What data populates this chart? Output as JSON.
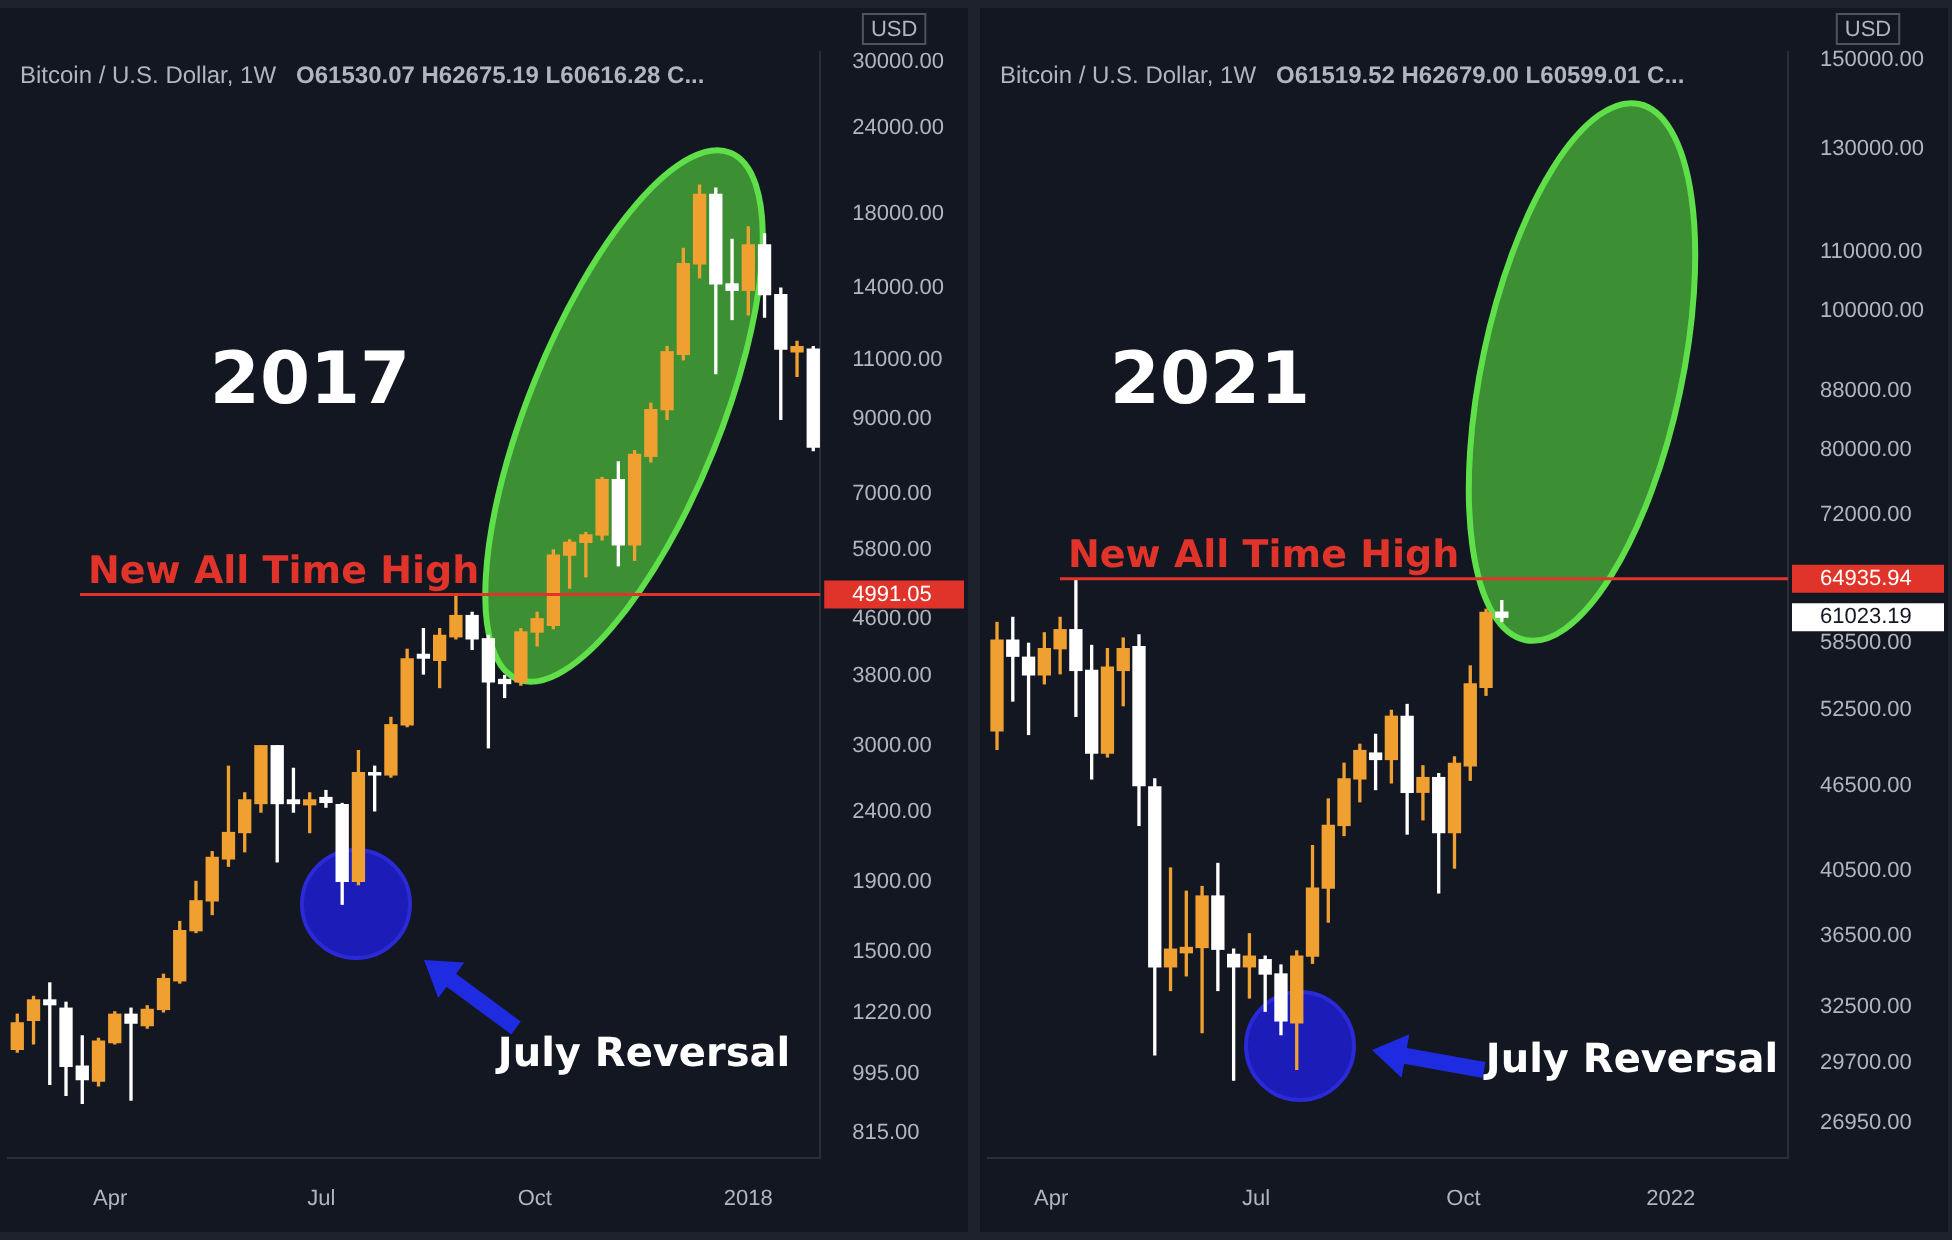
{
  "chart_data": [
    {
      "type": "candlestick",
      "title": "Bitcoin / U.S. Dollar, 1W",
      "subtitle": "O61530.07 H62675.19 L60616.28 C...",
      "ylabel": "USD",
      "log": true,
      "x": [
        "2017-02-20",
        "2017-02-27",
        "2017-03-06",
        "2017-03-13",
        "2017-03-20",
        "2017-03-27",
        "2017-04-03",
        "2017-04-10",
        "2017-04-17",
        "2017-04-24",
        "2017-05-01",
        "2017-05-08",
        "2017-05-15",
        "2017-05-22",
        "2017-05-29",
        "2017-06-05",
        "2017-06-12",
        "2017-06-19",
        "2017-06-26",
        "2017-07-03",
        "2017-07-10",
        "2017-07-17",
        "2017-07-24",
        "2017-07-31",
        "2017-08-07",
        "2017-08-14",
        "2017-08-21",
        "2017-08-28",
        "2017-09-04",
        "2017-09-11",
        "2017-09-18",
        "2017-09-25",
        "2017-10-02",
        "2017-10-09",
        "2017-10-16",
        "2017-10-23",
        "2017-10-30",
        "2017-11-06",
        "2017-11-13",
        "2017-11-20",
        "2017-11-27",
        "2017-12-04",
        "2017-12-11",
        "2017-12-18",
        "2017-12-25",
        "2018-01-01",
        "2018-01-08",
        "2018-01-15",
        "2018-01-22",
        "2018-01-29"
      ],
      "ohlc": [
        [
          1080,
          1215,
          1070,
          1180
        ],
        [
          1190,
          1290,
          1100,
          1275
        ],
        [
          1275,
          1350,
          960,
          1255
        ],
        [
          1240,
          1265,
          925,
          1020
        ],
        [
          1020,
          1130,
          900,
          975
        ],
        [
          970,
          1120,
          955,
          1110
        ],
        [
          1105,
          1225,
          1100,
          1215
        ],
        [
          1215,
          1240,
          910,
          1180
        ],
        [
          1170,
          1250,
          1160,
          1235
        ],
        [
          1235,
          1390,
          1225,
          1370
        ],
        [
          1360,
          1660,
          1350,
          1610
        ],
        [
          1610,
          1900,
          1600,
          1780
        ],
        [
          1780,
          2100,
          1700,
          2060
        ],
        [
          2050,
          2800,
          2000,
          2240
        ],
        [
          2240,
          2560,
          2100,
          2500
        ],
        [
          2470,
          3000,
          2400,
          3000
        ],
        [
          3000,
          3000,
          2030,
          2470
        ],
        [
          2500,
          2780,
          2400,
          2470
        ],
        [
          2460,
          2560,
          2240,
          2500
        ],
        [
          2520,
          2580,
          2440,
          2480
        ],
        [
          2460,
          2470,
          1760,
          1900
        ],
        [
          1900,
          2950,
          1880,
          2740
        ],
        [
          2740,
          2800,
          2410,
          2720
        ],
        [
          2720,
          3300,
          2700,
          3220
        ],
        [
          3220,
          4150,
          3200,
          4020
        ],
        [
          4080,
          4450,
          3820,
          4030
        ],
        [
          4000,
          4450,
          3650,
          4350
        ],
        [
          4330,
          5000,
          4300,
          4650
        ],
        [
          4650,
          4700,
          4150,
          4300
        ],
        [
          4300,
          4350,
          2980,
          3720
        ],
        [
          3750,
          3800,
          3530,
          3700
        ],
        [
          3720,
          4450,
          3680,
          4400
        ],
        [
          4400,
          4700,
          4200,
          4600
        ],
        [
          4500,
          5800,
          4450,
          5700
        ],
        [
          5700,
          6000,
          5100,
          5950
        ],
        [
          5950,
          6150,
          5300,
          6100
        ],
        [
          6100,
          7400,
          6000,
          7350
        ],
        [
          7350,
          7800,
          5500,
          5900
        ],
        [
          5900,
          8100,
          5600,
          8000
        ],
        [
          7950,
          9500,
          7800,
          9300
        ],
        [
          9300,
          11500,
          9000,
          11300
        ],
        [
          11200,
          16000,
          11000,
          15200
        ],
        [
          15200,
          19800,
          14500,
          19200
        ],
        [
          19200,
          19600,
          10500,
          14200
        ],
        [
          14200,
          16500,
          12600,
          13900
        ],
        [
          13900,
          17200,
          12800,
          16200
        ],
        [
          16200,
          16800,
          12700,
          13700
        ],
        [
          13700,
          14000,
          9000,
          11400
        ],
        [
          11300,
          11700,
          10400,
          11500
        ],
        [
          11400,
          11500,
          8100,
          8200
        ]
      ],
      "xlim": [
        "2017-02-16",
        "2018-02-01"
      ],
      "xticks": [
        {
          "value": "2017-04-01",
          "label": "Apr"
        },
        {
          "value": "2017-07-01",
          "label": "Jul"
        },
        {
          "value": "2017-10-01",
          "label": "Oct"
        },
        {
          "value": "2018-01-01",
          "label": "2018"
        }
      ],
      "ylim": [
        750,
        31000
      ],
      "yticks": [
        {
          "value": 815,
          "label": "815.00"
        },
        {
          "value": 995,
          "label": "995.00"
        },
        {
          "value": 1220,
          "label": "1220.00"
        },
        {
          "value": 1500,
          "label": "1500.00"
        },
        {
          "value": 1900,
          "label": "1900.00"
        },
        {
          "value": 2400,
          "label": "2400.00"
        },
        {
          "value": 3000,
          "label": "3000.00"
        },
        {
          "value": 3800,
          "label": "3800.00"
        },
        {
          "value": 4600,
          "label": "4600.00"
        },
        4991.05,
        {
          "value": 5800,
          "label": "5800.00"
        },
        {
          "value": 7000,
          "label": "7000.00"
        },
        {
          "value": 9000,
          "label": "9000.00"
        },
        {
          "value": 11000,
          "label": "11000.00"
        },
        {
          "value": 14000,
          "label": "14000.00"
        },
        {
          "value": 18000,
          "label": "18000.00"
        },
        {
          "value": 24000,
          "label": "24000.00"
        },
        {
          "value": 30000,
          "label": "30000.00"
        }
      ],
      "ref_lines": [
        {
          "axis": "y",
          "value": 4991.05,
          "label": "New All Time High",
          "color": "#e0342a"
        }
      ],
      "annotations": [
        "2017",
        "July Reversal"
      ]
    },
    {
      "type": "candlestick",
      "title": "Bitcoin / U.S. Dollar, 1W",
      "subtitle": "O61519.52 H62679.00 L60599.01 C...",
      "ylabel": "USD",
      "log": true,
      "x": [
        "2021-03-08",
        "2021-03-15",
        "2021-03-22",
        "2021-03-29",
        "2021-04-05",
        "2021-04-12",
        "2021-04-19",
        "2021-04-26",
        "2021-05-03",
        "2021-05-10",
        "2021-05-17",
        "2021-05-24",
        "2021-05-31",
        "2021-06-07",
        "2021-06-14",
        "2021-06-21",
        "2021-06-28",
        "2021-07-05",
        "2021-07-12",
        "2021-07-19",
        "2021-07-26",
        "2021-08-02",
        "2021-08-09",
        "2021-08-16",
        "2021-08-23",
        "2021-08-30",
        "2021-09-06",
        "2021-09-13",
        "2021-09-20",
        "2021-09-27",
        "2021-10-04",
        "2021-10-11",
        "2021-10-18"
      ],
      "ohlc": [
        [
          50800,
          60500,
          49300,
          58800
        ],
        [
          58800,
          61000,
          53300,
          57300
        ],
        [
          57200,
          58500,
          50500,
          55600
        ],
        [
          55600,
          59500,
          54800,
          58000
        ],
        [
          58000,
          61000,
          55700,
          59800
        ],
        [
          59800,
          64900,
          52000,
          56000
        ],
        [
          56000,
          58300,
          47000,
          49000
        ],
        [
          49000,
          58000,
          48700,
          56300
        ],
        [
          56000,
          59000,
          52900,
          58000
        ],
        [
          58200,
          59300,
          43600,
          46500
        ],
        [
          46400,
          47000,
          30100,
          34700
        ],
        [
          34700,
          40700,
          33400,
          35700
        ],
        [
          35500,
          39200,
          34200,
          35800
        ],
        [
          35800,
          39500,
          31200,
          38900
        ],
        [
          38900,
          41000,
          33400,
          35700
        ],
        [
          35400,
          35700,
          28900,
          34700
        ],
        [
          34700,
          36600,
          33000,
          35300
        ],
        [
          35100,
          35300,
          32300,
          34300
        ],
        [
          34300,
          34800,
          31100,
          31800
        ],
        [
          31700,
          35600,
          29400,
          35300
        ],
        [
          35300,
          42200,
          34900,
          39400
        ],
        [
          39400,
          45500,
          37300,
          43600
        ],
        [
          43600,
          48200,
          42900,
          47000
        ],
        [
          47000,
          49700,
          45300,
          49200
        ],
        [
          49000,
          50500,
          46200,
          48500
        ],
        [
          48500,
          52500,
          46700,
          52000
        ],
        [
          52000,
          53000,
          43000,
          46000
        ],
        [
          46000,
          48000,
          44000,
          47100
        ],
        [
          47100,
          47400,
          39100,
          43100
        ],
        [
          43100,
          48700,
          40700,
          48200
        ],
        [
          48000,
          56400,
          46900,
          54800
        ],
        [
          54500,
          61800,
          53800,
          61500
        ],
        [
          61519.52,
          62679.0,
          60599.01,
          61023.19
        ]
      ],
      "xlim": [
        "2021-03-04",
        "2022-02-22"
      ],
      "xticks": [
        {
          "value": "2021-04-01",
          "label": "Apr"
        },
        {
          "value": "2021-07-01",
          "label": "Jul"
        },
        {
          "value": "2021-10-01",
          "label": "Oct"
        },
        {
          "value": "2022-01-01",
          "label": "2022"
        }
      ],
      "ylim": [
        25500,
        152000
      ],
      "yticks": [
        {
          "value": 26950,
          "label": "26950.00"
        },
        {
          "value": 29700,
          "label": "29700.00"
        },
        {
          "value": 32500,
          "label": "32500.00"
        },
        {
          "value": 36500,
          "label": "36500.00"
        },
        {
          "value": 40500,
          "label": "40500.00"
        },
        {
          "value": 46500,
          "label": "46500.00"
        },
        {
          "value": 52500,
          "label": "52500.00"
        },
        {
          "value": 58500,
          "label": "58500.00"
        },
        61023.19,
        64935.94,
        {
          "value": 72000,
          "label": "72000.00"
        },
        {
          "value": 80000,
          "label": "80000.00"
        },
        {
          "value": 88000,
          "label": "88000.00"
        },
        {
          "value": 100000,
          "label": "100000.00"
        },
        {
          "value": 110000,
          "label": "110000.00"
        },
        {
          "value": 130000,
          "label": "130000.00"
        },
        {
          "value": 150000,
          "label": "150000.00"
        }
      ],
      "ref_lines": [
        {
          "axis": "y",
          "value": 64935.94,
          "label": "New All Time High",
          "color": "#e0342a"
        }
      ],
      "annotations": [
        "2021",
        "July Reversal"
      ]
    }
  ]
}
